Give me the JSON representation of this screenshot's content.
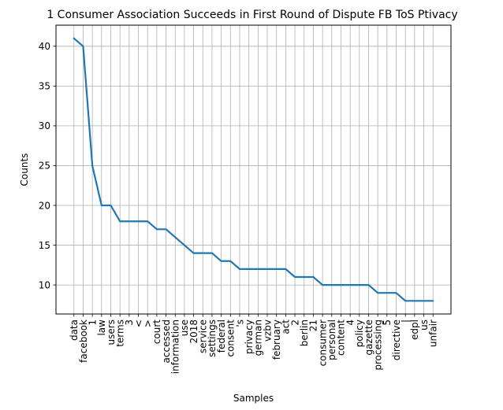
{
  "chart_data": {
    "type": "line",
    "title": "1 Consumer Association Succeeds in First Round of Dispute FB ToS Ptivacy",
    "xlabel": "Samples",
    "ylabel": "Counts",
    "grid": true,
    "legend": "none",
    "ylim": [
      6.35,
      42.65
    ],
    "yticks": [
      10,
      15,
      20,
      25,
      30,
      35,
      40
    ],
    "colors": {
      "line": "#1f77b4",
      "grid": "#b0b0b0"
    },
    "categories": [
      "data",
      "facebook",
      "1",
      "law",
      "users",
      "terms",
      "3",
      "<",
      ">",
      "court",
      "accessed",
      "information",
      "use",
      "2018",
      "service",
      "settings",
      "federal",
      "consent",
      "'s",
      "privacy",
      "german",
      "vzbv",
      "february",
      "act",
      "2",
      "berlin",
      "21",
      "consumer",
      "personal",
      "content",
      "4",
      "policy",
      "gazette",
      "processing",
      "5",
      "directive",
      "|",
      "edpl",
      "us",
      "unfair"
    ],
    "series": [
      {
        "values": [
          41,
          40,
          25,
          20,
          20,
          18,
          18,
          18,
          18,
          17,
          17,
          16,
          15,
          14,
          14,
          14,
          13,
          13,
          12,
          12,
          12,
          12,
          12,
          12,
          11,
          11,
          11,
          10,
          10,
          10,
          10,
          10,
          10,
          9,
          9,
          9,
          8,
          8,
          8,
          8
        ]
      }
    ]
  }
}
